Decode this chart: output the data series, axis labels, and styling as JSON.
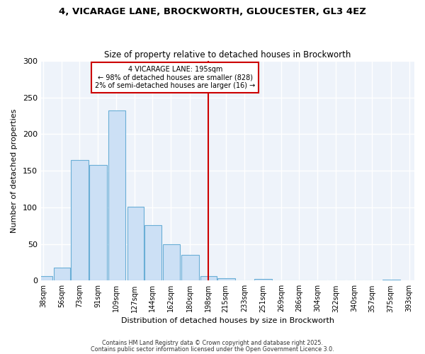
{
  "title_line1": "4, VICARAGE LANE, BROCKWORTH, GLOUCESTER, GL3 4EZ",
  "title_line2": "Size of property relative to detached houses in Brockworth",
  "xlabel": "Distribution of detached houses by size in Brockworth",
  "ylabel": "Number of detached properties",
  "bar_color": "#cce0f5",
  "bar_edge_color": "#6aaed6",
  "fig_background_color": "#ffffff",
  "axes_background_color": "#eef3fa",
  "grid_color": "#ffffff",
  "vline_color": "#cc0000",
  "annotation_title": "4 VICARAGE LANE: 195sqm",
  "annotation_line1": "← 98% of detached houses are smaller (828)",
  "annotation_line2": "2% of semi-detached houses are larger (16) →",
  "bins": [
    38,
    56,
    73,
    91,
    109,
    127,
    144,
    162,
    180,
    198,
    215,
    233,
    251,
    269,
    286,
    304,
    322,
    340,
    357,
    375,
    393
  ],
  "heights": [
    6,
    18,
    165,
    158,
    232,
    101,
    76,
    50,
    35,
    6,
    3,
    0,
    2,
    0,
    0,
    0,
    0,
    0,
    0,
    1
  ],
  "ylim": [
    0,
    300
  ],
  "yticks": [
    0,
    50,
    100,
    150,
    200,
    250,
    300
  ],
  "footnote1": "Contains HM Land Registry data © Crown copyright and database right 2025.",
  "footnote2": "Contains public sector information licensed under the Open Government Licence 3.0."
}
